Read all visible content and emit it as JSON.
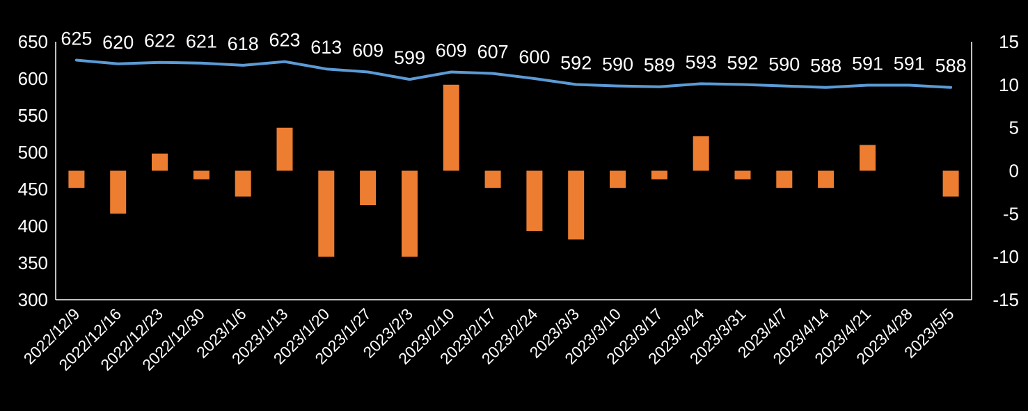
{
  "chart_data": {
    "type": "bar+line",
    "title": "",
    "xlabel": "",
    "ylabel": "",
    "y2label": "",
    "categories": [
      "2022/12/9",
      "2022/12/16",
      "2022/12/23",
      "2022/12/30",
      "2023/1/6",
      "2023/1/13",
      "2023/1/20",
      "2023/1/27",
      "2023/2/3",
      "2023/2/10",
      "2023/2/17",
      "2023/2/24",
      "2023/3/3",
      "2023/3/10",
      "2023/3/17",
      "2023/3/24",
      "2023/3/31",
      "2023/4/7",
      "2023/4/14",
      "2023/4/21",
      "2023/4/28",
      "2023/5/5"
    ],
    "series": [
      {
        "type": "line",
        "axis": "left",
        "color": "#5b9bd5",
        "values": [
          625,
          620,
          622,
          621,
          618,
          623,
          613,
          609,
          599,
          609,
          607,
          600,
          592,
          590,
          589,
          593,
          592,
          590,
          588,
          591,
          591,
          588
        ],
        "labels": [
          "625",
          "620",
          "622",
          "621",
          "618",
          "623",
          "613",
          "609",
          "599",
          "609",
          "607",
          "600",
          "592",
          "590",
          "589",
          "593",
          "592",
          "590",
          "588",
          "591",
          "591",
          "588"
        ]
      },
      {
        "type": "bar",
        "axis": "right",
        "color": "#ed7d31",
        "values": [
          -2,
          -5,
          2,
          -1,
          -3,
          5,
          -10,
          -4,
          -10,
          10,
          -2,
          -7,
          -8,
          -2,
          -1,
          4,
          -1,
          -2,
          -2,
          3,
          0,
          -3
        ]
      }
    ],
    "y_left": {
      "min": 300,
      "max": 650,
      "ticks": [
        "300",
        "350",
        "400",
        "450",
        "500",
        "550",
        "600",
        "650"
      ]
    },
    "y_right": {
      "min": -15,
      "max": 15,
      "ticks": [
        "-15",
        "-10",
        "-5",
        "0",
        "5",
        "10",
        "15"
      ]
    },
    "grid": false,
    "legend": "none"
  }
}
